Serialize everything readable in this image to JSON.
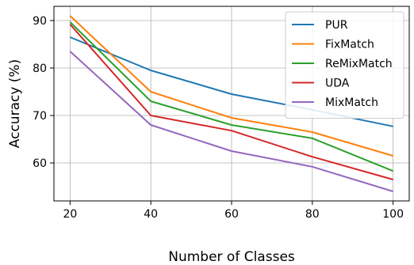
{
  "chart_data": {
    "type": "line",
    "title": "",
    "xlabel": "Number of Classes",
    "ylabel": "Accuracy (%)",
    "x": [
      20,
      40,
      60,
      80,
      100
    ],
    "xlim": [
      16,
      104
    ],
    "ylim": [
      52,
      93
    ],
    "xticks": [
      "20",
      "40",
      "60",
      "80",
      "100"
    ],
    "yticks": [
      "60",
      "70",
      "80",
      "90"
    ],
    "grid": true,
    "legend_position": "top-right",
    "series": [
      {
        "name": "PUR",
        "color": "#1f77b4",
        "values": [
          86.5,
          79.5,
          74.5,
          71.2,
          67.7
        ]
      },
      {
        "name": "FixMatch",
        "color": "#ff7f0e",
        "values": [
          91.0,
          75.0,
          69.5,
          66.5,
          61.5
        ]
      },
      {
        "name": "ReMixMatch",
        "color": "#2ca02c",
        "values": [
          89.7,
          73.0,
          68.0,
          65.2,
          58.3
        ]
      },
      {
        "name": "UDA",
        "color": "#d62728",
        "values": [
          89.2,
          70.0,
          66.8,
          61.3,
          56.5
        ]
      },
      {
        "name": "MixMatch",
        "color": "#9467bd",
        "values": [
          83.5,
          68.0,
          62.5,
          59.2,
          54.0
        ]
      }
    ]
  }
}
